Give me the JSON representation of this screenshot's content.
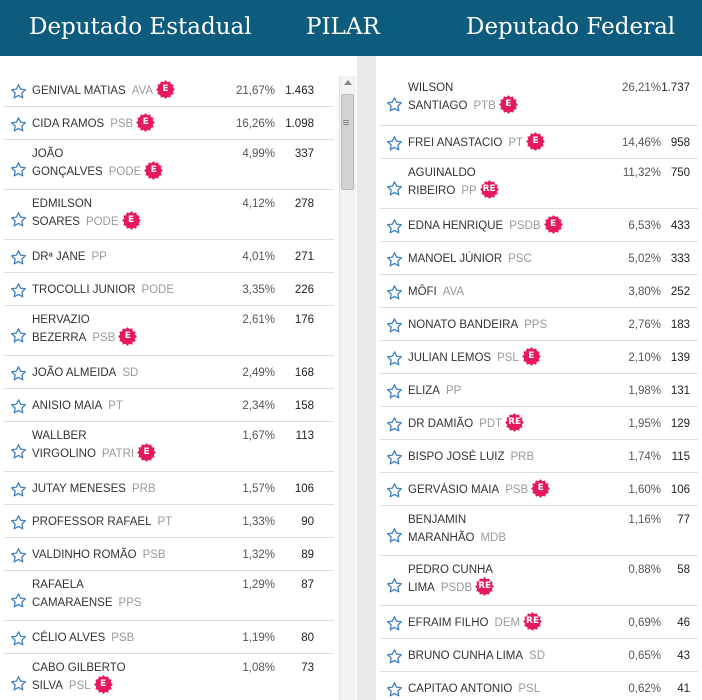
{
  "header": {
    "left_title": "Deputado Estadual",
    "center_title": "PILAR",
    "right_title": "Deputado Federal"
  },
  "colors": {
    "header_bg": "#0d5b7d",
    "badge": "#e6195f",
    "star": "#3b7ec2"
  },
  "icons": {
    "favorite": "star-outline-icon",
    "elected": "starburst-badge"
  },
  "estadual": [
    {
      "name": "GENIVAL MATIAS",
      "party": "AVA",
      "badge": "E",
      "pct": "21,67%",
      "votes": "1.463"
    },
    {
      "name": "CIDA RAMOS",
      "party": "PSB",
      "badge": "E",
      "pct": "16,26%",
      "votes": "1.098"
    },
    {
      "name": "JOÃO GONÇALVES",
      "party": "PODE",
      "badge": "E",
      "pct": "4,99%",
      "votes": "337"
    },
    {
      "name": "EDMILSON SOARES",
      "party": "PODE",
      "badge": "E",
      "pct": "4,12%",
      "votes": "278"
    },
    {
      "name": "DRª JANE",
      "party": "PP",
      "badge": "",
      "pct": "4,01%",
      "votes": "271"
    },
    {
      "name": "TROCOLLI JUNIOR",
      "party": "PODE",
      "badge": "",
      "pct": "3,35%",
      "votes": "226"
    },
    {
      "name": "HERVAZIO BEZERRA",
      "party": "PSB",
      "badge": "E",
      "pct": "2,61%",
      "votes": "176"
    },
    {
      "name": "JOÃO ALMEIDA",
      "party": "SD",
      "badge": "",
      "pct": "2,49%",
      "votes": "168"
    },
    {
      "name": "ANISIO MAIA",
      "party": "PT",
      "badge": "",
      "pct": "2,34%",
      "votes": "158"
    },
    {
      "name": "WALLBER VIRGOLINO",
      "party": "PATRI",
      "badge": "E",
      "pct": "1,67%",
      "votes": "113"
    },
    {
      "name": "JUTAY MENESES",
      "party": "PRB",
      "badge": "",
      "pct": "1,57%",
      "votes": "106"
    },
    {
      "name": "PROFESSOR RAFAEL",
      "party": "PT",
      "badge": "",
      "pct": "1,33%",
      "votes": "90"
    },
    {
      "name": "VALDINHO ROMÃO",
      "party": "PSB",
      "badge": "",
      "pct": "1,32%",
      "votes": "89"
    },
    {
      "name": "RAFAELA CAMARAENSE",
      "party": "PPS",
      "badge": "",
      "pct": "1,29%",
      "votes": "87"
    },
    {
      "name": "CÉLIO ALVES",
      "party": "PSB",
      "badge": "",
      "pct": "1,19%",
      "votes": "80"
    },
    {
      "name": "CABO GILBERTO SILVA",
      "party": "PSL",
      "badge": "E",
      "pct": "1,08%",
      "votes": "73"
    }
  ],
  "federal": [
    {
      "name": "WILSON SANTIAGO",
      "party": "PTB",
      "badge": "E",
      "pct": "26,21%",
      "votes": "1.737"
    },
    {
      "name": "FREI ANASTACIO",
      "party": "PT",
      "badge": "E",
      "pct": "14,46%",
      "votes": "958"
    },
    {
      "name": "AGUINALDO RIBEIRO",
      "party": "PP",
      "badge": "RE",
      "pct": "11,32%",
      "votes": "750"
    },
    {
      "name": "EDNA HENRIQUE",
      "party": "PSDB",
      "badge": "E",
      "pct": "6,53%",
      "votes": "433"
    },
    {
      "name": "MANOEL JÚNIOR",
      "party": "PSC",
      "badge": "",
      "pct": "5,02%",
      "votes": "333"
    },
    {
      "name": "MÔFI",
      "party": "AVA",
      "badge": "",
      "pct": "3,80%",
      "votes": "252"
    },
    {
      "name": "NONATO BANDEIRA",
      "party": "PPS",
      "badge": "",
      "pct": "2,76%",
      "votes": "183"
    },
    {
      "name": "JULIAN LEMOS",
      "party": "PSL",
      "badge": "E",
      "pct": "2,10%",
      "votes": "139"
    },
    {
      "name": "ELIZA",
      "party": "PP",
      "badge": "",
      "pct": "1,98%",
      "votes": "131"
    },
    {
      "name": "DR DAMIÃO",
      "party": "PDT",
      "badge": "RE",
      "pct": "1,95%",
      "votes": "129"
    },
    {
      "name": "BISPO JOSÉ LUIZ",
      "party": "PRB",
      "badge": "",
      "pct": "1,74%",
      "votes": "115"
    },
    {
      "name": "GERVÁSIO MAIA",
      "party": "PSB",
      "badge": "E",
      "pct": "1,60%",
      "votes": "106"
    },
    {
      "name": "BENJAMIN MARANHÃO",
      "party": "MDB",
      "badge": "",
      "pct": "1,16%",
      "votes": "77"
    },
    {
      "name": "PEDRO CUNHA LIMA",
      "party": "PSDB",
      "badge": "RE",
      "pct": "0,88%",
      "votes": "58"
    },
    {
      "name": "EFRAIM FILHO",
      "party": "DEM",
      "badge": "RE",
      "pct": "0,69%",
      "votes": "46"
    },
    {
      "name": "BRUNO CUNHA LIMA",
      "party": "SD",
      "badge": "",
      "pct": "0,65%",
      "votes": "43"
    },
    {
      "name": "CAPITAO ANTONIO",
      "party": "PSL",
      "badge": "",
      "pct": "0,62%",
      "votes": "41"
    }
  ]
}
